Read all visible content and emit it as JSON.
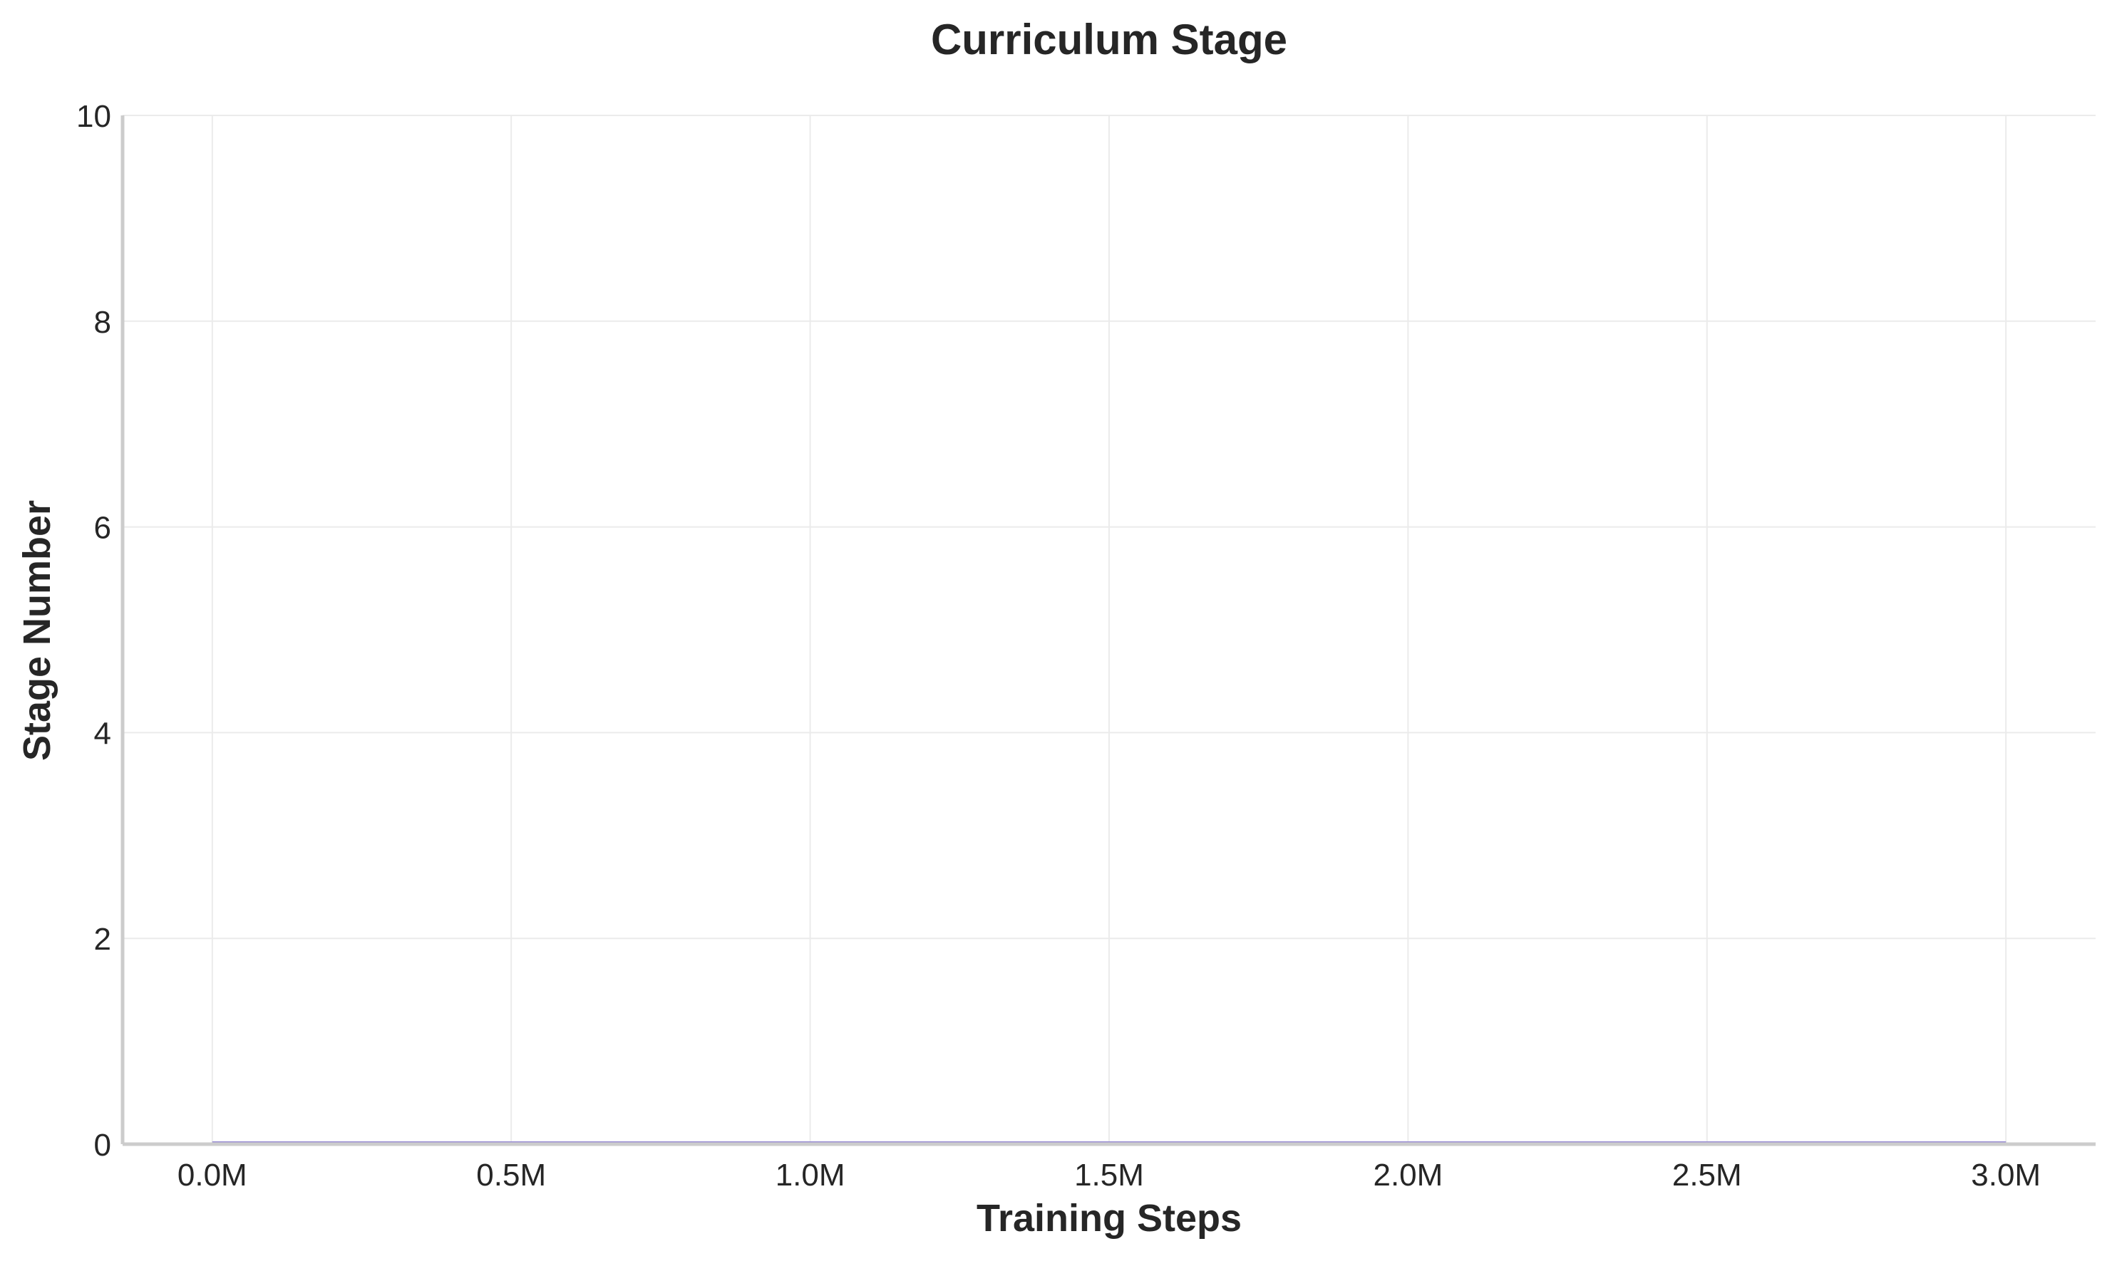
{
  "chart_data": {
    "type": "line",
    "title": "Curriculum Stage",
    "xlabel": "Training Steps",
    "ylabel": "Stage Number",
    "x_unit": "M",
    "xlim": [
      -0.15,
      3.15
    ],
    "ylim": [
      0,
      10
    ],
    "x_ticks": [
      0.0,
      0.5,
      1.0,
      1.5,
      2.0,
      2.5,
      3.0
    ],
    "x_tick_labels": [
      "0.0M",
      "0.5M",
      "1.0M",
      "1.5M",
      "2.0M",
      "2.5M",
      "3.0M"
    ],
    "y_ticks": [
      0,
      2,
      4,
      6,
      8,
      10
    ],
    "y_tick_labels": [
      "0",
      "2",
      "4",
      "6",
      "8",
      "10"
    ],
    "grid": true,
    "series": [
      {
        "color": "#9b8fd4",
        "x": [
          0.0,
          0.5,
          1.0,
          1.5,
          2.0,
          2.5,
          3.0
        ],
        "y": [
          0,
          0,
          0,
          0,
          0,
          0,
          0
        ]
      }
    ]
  }
}
